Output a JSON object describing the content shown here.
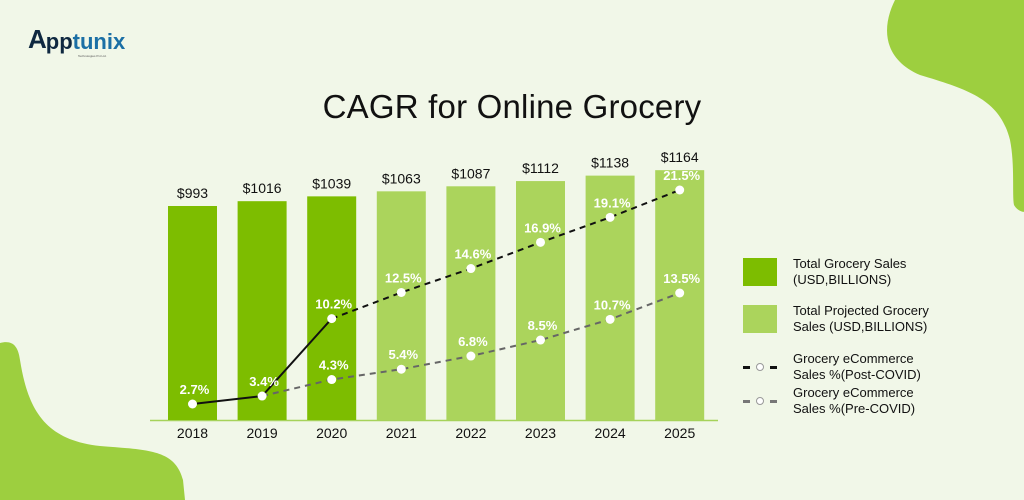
{
  "brand": {
    "logo_initial": "A",
    "logo_pp": "pp",
    "logo_tunix": "tunix",
    "logo_tagline": "Technologies Pvt Ltd.",
    "colors": {
      "navy": "#0f2840",
      "blue": "#1b6fa5"
    }
  },
  "title": "CAGR for Online Grocery",
  "colors": {
    "background": "#f1f7e8",
    "actual_bar": "#7dbd00",
    "projected_bar": "#abd45c",
    "blob": "#9dcf3f",
    "post_covid_line": "#111111",
    "pre_covid_line": "#555555"
  },
  "legend": {
    "items": [
      {
        "label_line1": "Total Grocery Sales",
        "label_line2": "(USD,BILLIONS)",
        "type": "bar",
        "color": "#7dbd00"
      },
      {
        "label_line1": "Total Projected Grocery",
        "label_line2": "Sales (USD,BILLIONS)",
        "type": "bar",
        "color": "#abd45c"
      },
      {
        "label_line1": "Grocery eCommerce",
        "label_line2": "Sales %(Post-COVID)",
        "type": "line",
        "color": "#111111"
      },
      {
        "label_line1": "Grocery eCommerce",
        "label_line2": "Sales %(Pre-COVID)",
        "type": "line",
        "color": "#666666"
      }
    ]
  },
  "bars": [
    {
      "year": "2018",
      "label": "$993",
      "projected": false
    },
    {
      "year": "2019",
      "label": "$1016",
      "projected": false
    },
    {
      "year": "2020",
      "label": "$1039",
      "projected": false
    },
    {
      "year": "2021",
      "label": "$1063",
      "projected": true
    },
    {
      "year": "2022",
      "label": "$1087",
      "projected": true
    },
    {
      "year": "2023",
      "label": "$1112",
      "projected": true
    },
    {
      "year": "2024",
      "label": "$1138",
      "projected": true
    },
    {
      "year": "2025",
      "label": "$1164",
      "projected": true
    }
  ],
  "post_covid": [
    "2.7%",
    "3.4%",
    "10.2%",
    "12.5%",
    "14.6%",
    "16.9%",
    "19.1%",
    "21.5%"
  ],
  "pre_covid": [
    "",
    "",
    "4.3%",
    "5.4%",
    "6.8%",
    "8.5%",
    "10.7%",
    "13.5%"
  ],
  "chart_data": {
    "type": "bar",
    "title": "CAGR for Online Grocery",
    "xlabel": "",
    "ylabel": "",
    "categories": [
      "2018",
      "2019",
      "2020",
      "2021",
      "2022",
      "2023",
      "2024",
      "2025"
    ],
    "series": [
      {
        "name": "Total Grocery Sales (USD,BILLIONS)",
        "type": "bar",
        "values": [
          993,
          1016,
          1039,
          null,
          null,
          null,
          null,
          null
        ]
      },
      {
        "name": "Total Projected Grocery Sales (USD,BILLIONS)",
        "type": "bar",
        "values": [
          null,
          null,
          null,
          1063,
          1087,
          1112,
          1138,
          1164
        ]
      },
      {
        "name": "Grocery eCommerce Sales %(Post-COVID)",
        "type": "line",
        "style": "solid through 2020, dashed after",
        "values": [
          2.7,
          3.4,
          10.2,
          12.5,
          14.6,
          16.9,
          19.1,
          21.5
        ]
      },
      {
        "name": "Grocery eCommerce Sales %(Pre-COVID)",
        "type": "line",
        "style": "dashed",
        "values": [
          2.7,
          3.4,
          4.3,
          5.4,
          6.8,
          8.5,
          10.7,
          13.5
        ]
      }
    ],
    "data_labels": {
      "bars": [
        "$993",
        "$1016",
        "$1039",
        "$1063",
        "$1087",
        "$1112",
        "$1138",
        "$1164"
      ]
    },
    "legend_position": "right",
    "grid": false
  }
}
